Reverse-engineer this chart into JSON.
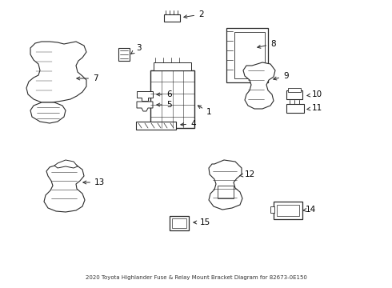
{
  "title": "2020 Toyota Highlander Fuse & Relay Mount Bracket Diagram for 82673-0E150",
  "bg_color": "#ffffff",
  "line_color": "#2a2a2a",
  "label_color": "#000000",
  "figsize": [
    4.9,
    3.6
  ],
  "dpi": 100
}
